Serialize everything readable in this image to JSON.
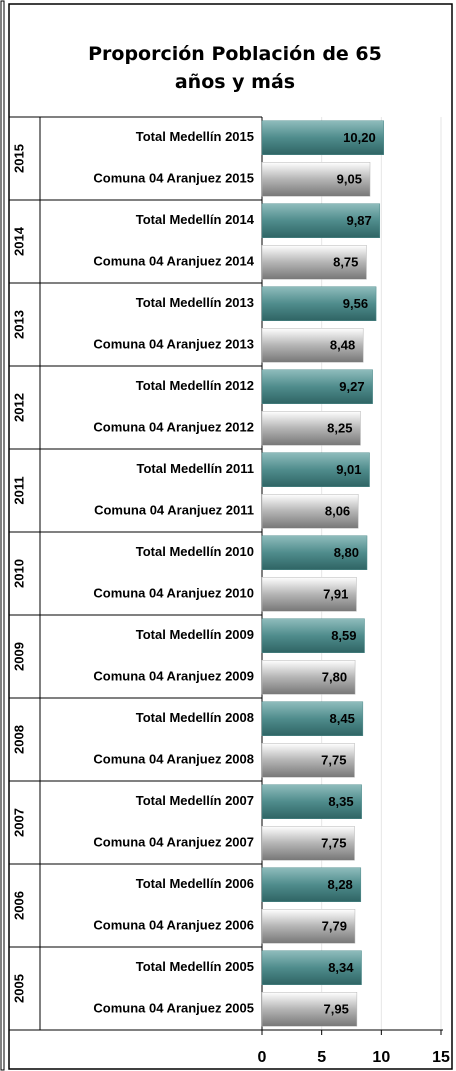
{
  "chart_data": {
    "type": "bar",
    "orientation": "horizontal",
    "title": "Proporción Población de 65 años y más",
    "groups": [
      "2015",
      "2014",
      "2013",
      "2012",
      "2011",
      "2010",
      "2009",
      "2008",
      "2007",
      "2006",
      "2005"
    ],
    "categories": [
      "Total Medellín 2015",
      "Comuna 04 Aranjuez 2015",
      "Total Medellín 2014",
      "Comuna 04 Aranjuez 2014",
      "Total Medellín 2013",
      "Comuna 04 Aranjuez 2013",
      "Total Medellín 2012",
      "Comuna 04 Aranjuez 2012",
      "Total Medellín 2011",
      "Comuna 04 Aranjuez 2011",
      "Total Medellín 2010",
      "Comuna 04 Aranjuez 2010",
      "Total Medellín 2009",
      "Comuna 04 Aranjuez 2009",
      "Total Medellín 2008",
      "Comuna 04 Aranjuez 2008",
      "Total Medellín 2007",
      "Comuna 04 Aranjuez 2007",
      "Total Medellín 2006",
      "Comuna 04 Aranjuez 2006",
      "Total Medellín 2005",
      "Comuna 04 Aranjuez 2005"
    ],
    "values": [
      10.2,
      9.05,
      9.87,
      8.75,
      9.56,
      8.48,
      9.27,
      8.25,
      9.01,
      8.06,
      8.8,
      7.91,
      8.59,
      7.8,
      8.45,
      7.75,
      8.35,
      7.75,
      8.28,
      7.79,
      8.34,
      7.95
    ],
    "value_labels": [
      "10,20",
      "9,05",
      "9,87",
      "8,75",
      "9,56",
      "8,48",
      "9,27",
      "8,25",
      "9,01",
      "8,06",
      "8,80",
      "7,91",
      "8,59",
      "7,80",
      "8,45",
      "7,75",
      "8,35",
      "7,75",
      "8,28",
      "7,79",
      "8,34",
      "7,95"
    ],
    "colors": [
      "#4f8c8c",
      "#b5b5b5"
    ],
    "xlim": [
      0,
      15
    ],
    "xticks": [
      0,
      5,
      10,
      15
    ],
    "grid": true
  }
}
